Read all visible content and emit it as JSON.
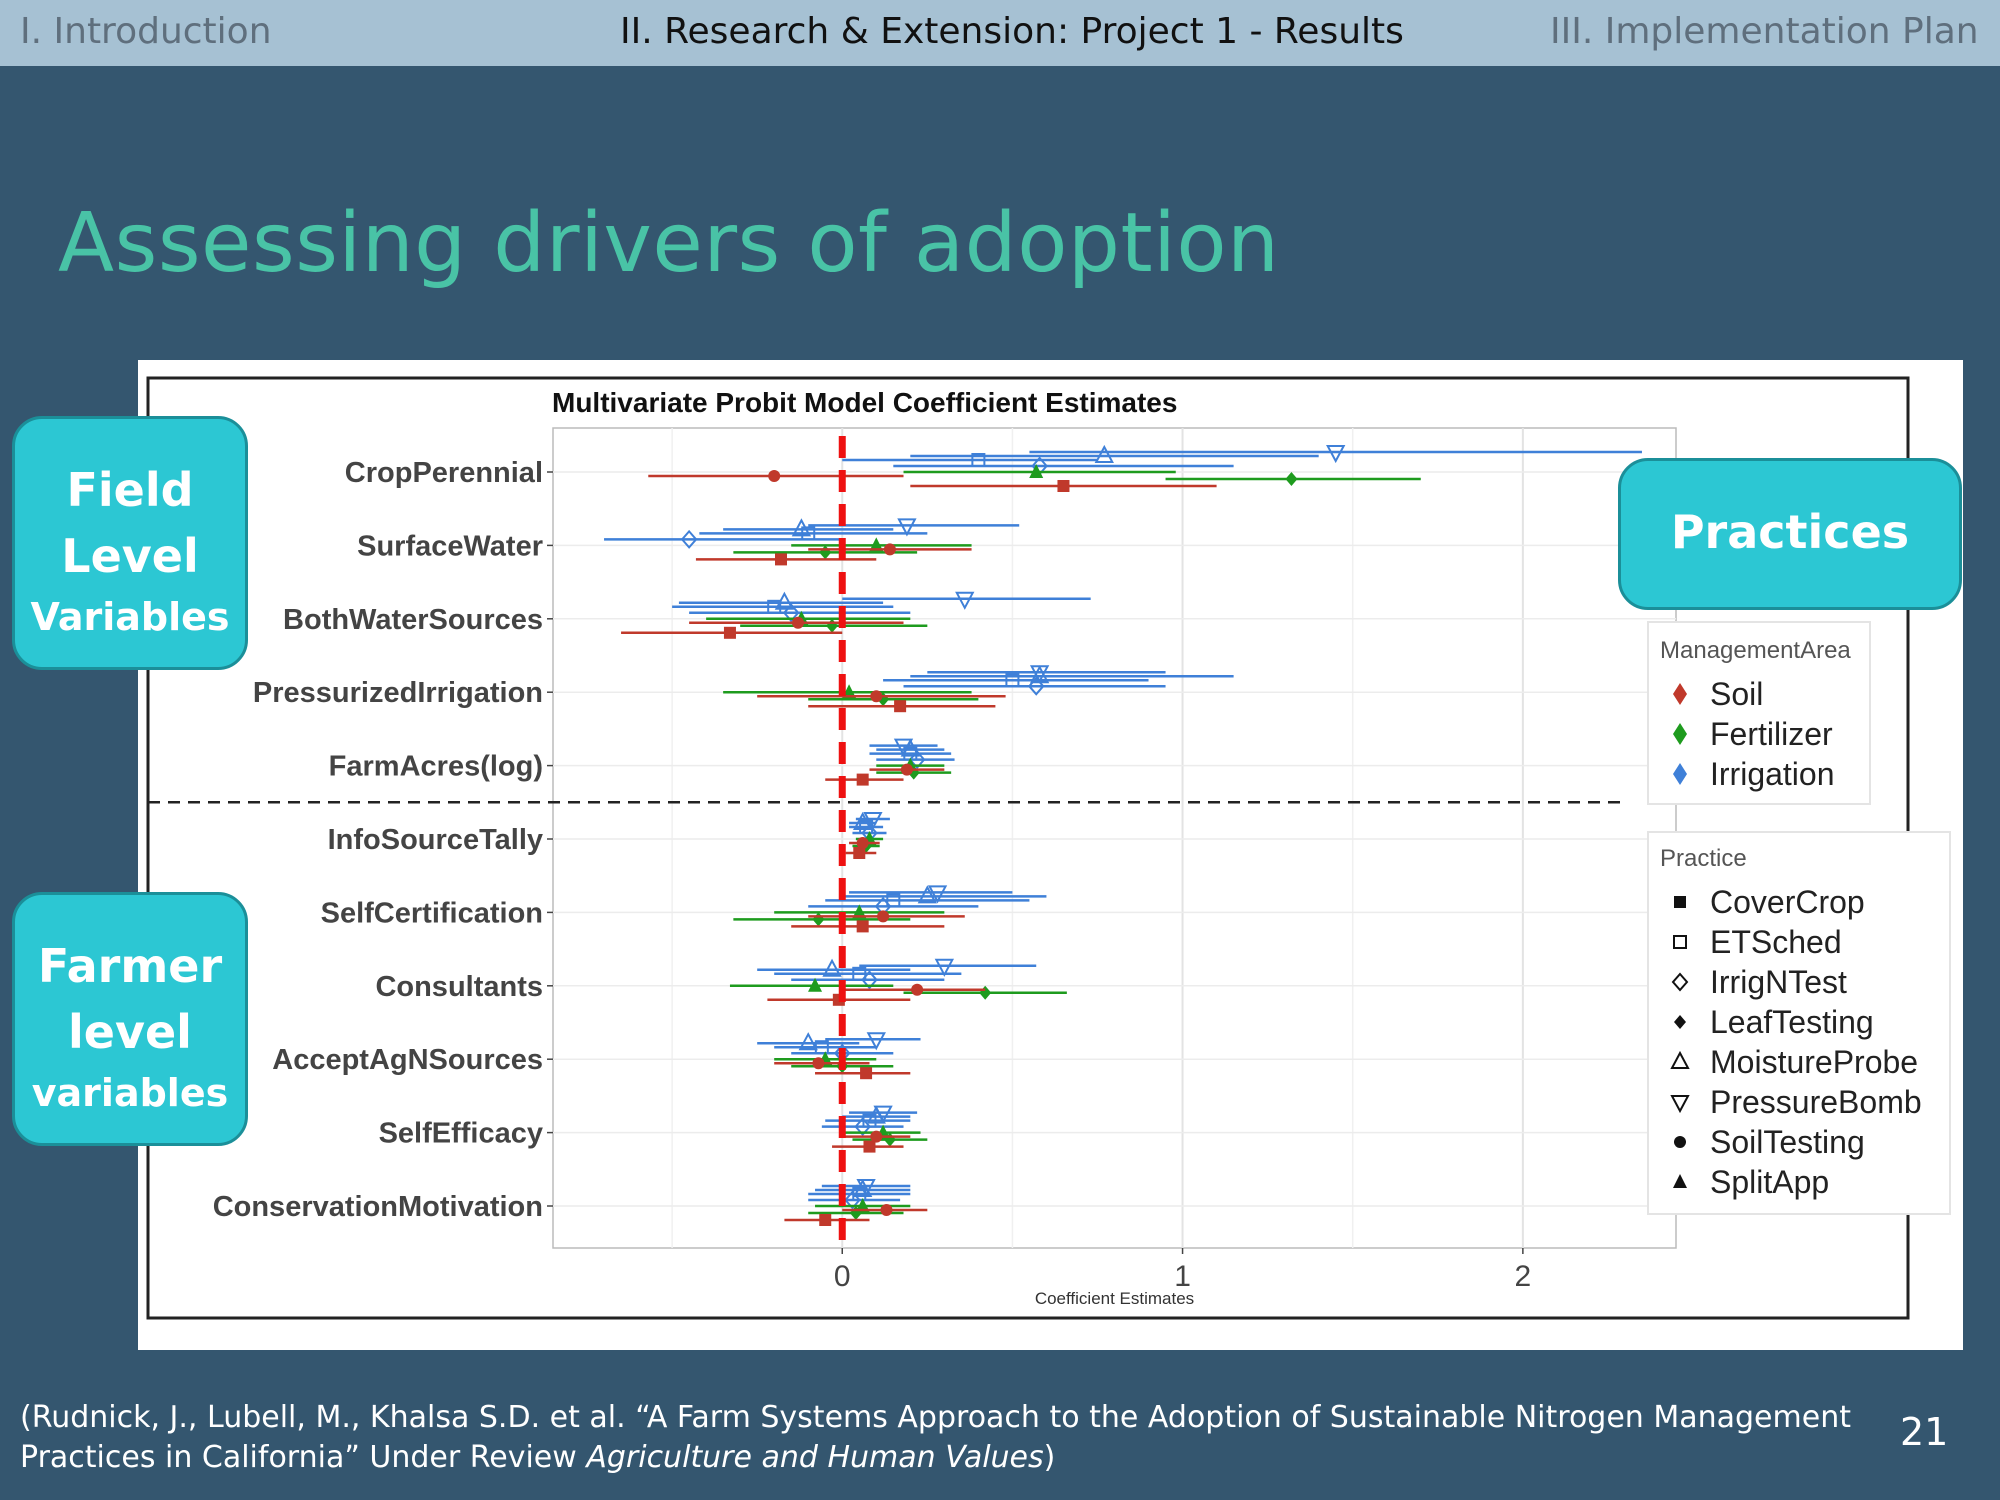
{
  "nav": {
    "intro": "I. Introduction",
    "current": "II. Research & Extension: Project 1 - Results",
    "plan": "III. Implementation Plan"
  },
  "slide_title": "Assessing drivers of adoption",
  "callouts": {
    "field_line1": "Field",
    "field_line2": "Level",
    "field_line3": "Variables",
    "farmer_line1": "Farmer",
    "farmer_line2": "level",
    "farmer_line3": "variables",
    "practices": "Practices"
  },
  "citation": {
    "text_before": "(Rudnick, J., Lubell, M., Khalsa S.D. et al. “A Farm Systems Approach to the Adoption of Sustainable Nitrogen Management Practices in California” Under Review ",
    "journal": "Agriculture and Human Values",
    "text_after": ")"
  },
  "page_number": "21",
  "colors": {
    "Soil": "#c0392b",
    "Fertilizer": "#1e9b1e",
    "Irrigation": "#3f80d8",
    "zero_line": "#ee1111"
  },
  "chart_data": {
    "type": "scatter",
    "title": "Multivariate Probit Model Coefficient Estimates",
    "xlabel": "Coefficient Estimates",
    "xlim": [
      -0.85,
      2.45
    ],
    "xticks": [
      0,
      1,
      2
    ],
    "grid": true,
    "reference_line_x": 0,
    "divider_between": [
      "FarmAcres(log)",
      "InfoSourceTally"
    ],
    "categories": [
      "CropPerennial",
      "SurfaceWater",
      "BothWaterSources",
      "PressurizedIrrigation",
      "FarmAcres(log)",
      "InfoSourceTally",
      "SelfCertification",
      "Consultants",
      "AcceptAgNSources",
      "SelfEfficacy",
      "ConservationMotivation"
    ],
    "legend_management": {
      "title": "ManagementArea",
      "items": [
        "Soil",
        "Fertilizer",
        "Irrigation"
      ],
      "position": "right"
    },
    "legend_practice": {
      "title": "Practice",
      "items": [
        "CoverCrop",
        "ETSched",
        "IrrigNTest",
        "LeafTesting",
        "MoistureProbe",
        "PressureBomb",
        "SoilTesting",
        "SplitApp"
      ],
      "position": "right"
    },
    "series": [
      {
        "name": "Irrigation",
        "estimates": [
          [
            {
              "practice": "ETSched",
              "est": 0.4,
              "lo": 0.0,
              "hi": 0.75
            },
            {
              "practice": "IrrigNTest",
              "est": 0.58,
              "lo": 0.15,
              "hi": 1.15
            },
            {
              "practice": "MoistureProbe",
              "est": 0.77,
              "lo": 0.2,
              "hi": 1.4
            },
            {
              "practice": "PressureBomb",
              "est": 1.45,
              "lo": 0.55,
              "hi": 2.35
            }
          ],
          [
            {
              "practice": "ETSched",
              "est": -0.1,
              "lo": -0.42,
              "hi": 0.25
            },
            {
              "practice": "IrrigNTest",
              "est": -0.45,
              "lo": -0.7,
              "hi": 0.0
            },
            {
              "practice": "MoistureProbe",
              "est": -0.12,
              "lo": -0.35,
              "hi": 0.15
            },
            {
              "practice": "PressureBomb",
              "est": 0.19,
              "lo": -0.1,
              "hi": 0.52
            }
          ],
          [
            {
              "practice": "ETSched",
              "est": -0.2,
              "lo": -0.5,
              "hi": 0.15
            },
            {
              "practice": "IrrigNTest",
              "est": -0.15,
              "lo": -0.45,
              "hi": 0.2
            },
            {
              "practice": "MoistureProbe",
              "est": -0.17,
              "lo": -0.48,
              "hi": 0.12
            },
            {
              "practice": "PressureBomb",
              "est": 0.36,
              "lo": 0.0,
              "hi": 0.73
            }
          ],
          [
            {
              "practice": "ETSched",
              "est": 0.5,
              "lo": 0.12,
              "hi": 0.9
            },
            {
              "practice": "IrrigNTest",
              "est": 0.57,
              "lo": 0.18,
              "hi": 0.95
            },
            {
              "practice": "MoistureProbe",
              "est": 0.58,
              "lo": 0.2,
              "hi": 1.15
            },
            {
              "practice": "PressureBomb",
              "est": 0.58,
              "lo": 0.25,
              "hi": 0.95
            }
          ],
          [
            {
              "practice": "ETSched",
              "est": 0.2,
              "lo": 0.08,
              "hi": 0.32
            },
            {
              "practice": "IrrigNTest",
              "est": 0.22,
              "lo": 0.1,
              "hi": 0.33
            },
            {
              "practice": "MoistureProbe",
              "est": 0.2,
              "lo": 0.1,
              "hi": 0.3
            },
            {
              "practice": "PressureBomb",
              "est": 0.18,
              "lo": 0.08,
              "hi": 0.28
            }
          ],
          [
            {
              "practice": "ETSched",
              "est": 0.07,
              "lo": 0.02,
              "hi": 0.12
            },
            {
              "practice": "IrrigNTest",
              "est": 0.08,
              "lo": 0.03,
              "hi": 0.13
            },
            {
              "practice": "MoistureProbe",
              "est": 0.06,
              "lo": 0.02,
              "hi": 0.1
            },
            {
              "practice": "PressureBomb",
              "est": 0.09,
              "lo": 0.04,
              "hi": 0.14
            }
          ],
          [
            {
              "practice": "ETSched",
              "est": 0.15,
              "lo": -0.05,
              "hi": 0.55
            },
            {
              "practice": "IrrigNTest",
              "est": 0.12,
              "lo": -0.1,
              "hi": 0.4
            },
            {
              "practice": "MoistureProbe",
              "est": 0.25,
              "lo": 0.0,
              "hi": 0.6
            },
            {
              "practice": "PressureBomb",
              "est": 0.28,
              "lo": 0.02,
              "hi": 0.5
            }
          ],
          [
            {
              "practice": "ETSched",
              "est": 0.05,
              "lo": -0.2,
              "hi": 0.35
            },
            {
              "practice": "IrrigNTest",
              "est": 0.08,
              "lo": -0.15,
              "hi": 0.3
            },
            {
              "practice": "MoistureProbe",
              "est": -0.03,
              "lo": -0.25,
              "hi": 0.2
            },
            {
              "practice": "PressureBomb",
              "est": 0.3,
              "lo": 0.05,
              "hi": 0.57
            }
          ],
          [
            {
              "practice": "ETSched",
              "est": -0.06,
              "lo": -0.2,
              "hi": 0.1
            },
            {
              "practice": "IrrigNTest",
              "est": 0.0,
              "lo": -0.15,
              "hi": 0.15
            },
            {
              "practice": "MoistureProbe",
              "est": -0.1,
              "lo": -0.25,
              "hi": 0.05
            },
            {
              "practice": "PressureBomb",
              "est": 0.1,
              "lo": -0.05,
              "hi": 0.23
            }
          ],
          [
            {
              "practice": "ETSched",
              "est": 0.08,
              "lo": -0.05,
              "hi": 0.2
            },
            {
              "practice": "IrrigNTest",
              "est": 0.06,
              "lo": -0.06,
              "hi": 0.18
            },
            {
              "practice": "MoistureProbe",
              "est": 0.1,
              "lo": 0.0,
              "hi": 0.2
            },
            {
              "practice": "PressureBomb",
              "est": 0.12,
              "lo": 0.02,
              "hi": 0.22
            }
          ],
          [
            {
              "practice": "ETSched",
              "est": 0.05,
              "lo": -0.1,
              "hi": 0.2
            },
            {
              "practice": "IrrigNTest",
              "est": 0.03,
              "lo": -0.1,
              "hi": 0.17
            },
            {
              "practice": "MoistureProbe",
              "est": 0.06,
              "lo": -0.08,
              "hi": 0.2
            },
            {
              "practice": "PressureBomb",
              "est": 0.07,
              "lo": -0.06,
              "hi": 0.2
            }
          ]
        ]
      },
      {
        "name": "Fertilizer",
        "estimates": [
          [
            {
              "practice": "LeafTesting",
              "est": 1.32,
              "lo": 0.95,
              "hi": 1.7
            },
            {
              "practice": "SplitApp",
              "est": 0.57,
              "lo": 0.18,
              "hi": 0.98
            }
          ],
          [
            {
              "practice": "LeafTesting",
              "est": -0.05,
              "lo": -0.32,
              "hi": 0.22
            },
            {
              "practice": "SplitApp",
              "est": 0.1,
              "lo": -0.15,
              "hi": 0.38
            }
          ],
          [
            {
              "practice": "LeafTesting",
              "est": -0.03,
              "lo": -0.3,
              "hi": 0.25
            },
            {
              "practice": "SplitApp",
              "est": -0.12,
              "lo": -0.4,
              "hi": 0.2
            }
          ],
          [
            {
              "practice": "LeafTesting",
              "est": 0.12,
              "lo": -0.1,
              "hi": 0.4
            },
            {
              "practice": "SplitApp",
              "est": 0.02,
              "lo": -0.35,
              "hi": 0.38
            }
          ],
          [
            {
              "practice": "LeafTesting",
              "est": 0.21,
              "lo": 0.1,
              "hi": 0.32
            },
            {
              "practice": "SplitApp",
              "est": 0.2,
              "lo": 0.1,
              "hi": 0.3
            }
          ],
          [
            {
              "practice": "LeafTesting",
              "est": 0.07,
              "lo": 0.03,
              "hi": 0.11
            },
            {
              "practice": "SplitApp",
              "est": 0.08,
              "lo": 0.04,
              "hi": 0.12
            }
          ],
          [
            {
              "practice": "LeafTesting",
              "est": -0.07,
              "lo": -0.32,
              "hi": 0.2
            },
            {
              "practice": "SplitApp",
              "est": 0.05,
              "lo": -0.2,
              "hi": 0.3
            }
          ],
          [
            {
              "practice": "LeafTesting",
              "est": 0.42,
              "lo": 0.18,
              "hi": 0.66
            },
            {
              "practice": "SplitApp",
              "est": -0.08,
              "lo": -0.33,
              "hi": 0.15
            }
          ],
          [
            {
              "practice": "LeafTesting",
              "est": 0.0,
              "lo": -0.15,
              "hi": 0.15
            },
            {
              "practice": "SplitApp",
              "est": -0.05,
              "lo": -0.2,
              "hi": 0.1
            }
          ],
          [
            {
              "practice": "LeafTesting",
              "est": 0.14,
              "lo": 0.03,
              "hi": 0.25
            },
            {
              "practice": "SplitApp",
              "est": 0.12,
              "lo": 0.0,
              "hi": 0.23
            }
          ],
          [
            {
              "practice": "LeafTesting",
              "est": 0.04,
              "lo": -0.1,
              "hi": 0.18
            },
            {
              "practice": "SplitApp",
              "est": 0.06,
              "lo": -0.08,
              "hi": 0.2
            }
          ]
        ]
      },
      {
        "name": "Soil",
        "estimates": [
          [
            {
              "practice": "CoverCrop",
              "est": 0.65,
              "lo": 0.2,
              "hi": 1.1
            },
            {
              "practice": "SoilTesting",
              "est": -0.2,
              "lo": -0.57,
              "hi": 0.18
            }
          ],
          [
            {
              "practice": "CoverCrop",
              "est": -0.18,
              "lo": -0.43,
              "hi": 0.1
            },
            {
              "practice": "SoilTesting",
              "est": 0.14,
              "lo": -0.1,
              "hi": 0.38
            }
          ],
          [
            {
              "practice": "CoverCrop",
              "est": -0.33,
              "lo": -0.65,
              "hi": 0.0
            },
            {
              "practice": "SoilTesting",
              "est": -0.13,
              "lo": -0.45,
              "hi": 0.18
            }
          ],
          [
            {
              "practice": "CoverCrop",
              "est": 0.17,
              "lo": -0.1,
              "hi": 0.45
            },
            {
              "practice": "SoilTesting",
              "est": 0.1,
              "lo": -0.25,
              "hi": 0.48
            }
          ],
          [
            {
              "practice": "CoverCrop",
              "est": 0.06,
              "lo": -0.05,
              "hi": 0.18
            },
            {
              "practice": "SoilTesting",
              "est": 0.19,
              "lo": 0.08,
              "hi": 0.3
            }
          ],
          [
            {
              "practice": "CoverCrop",
              "est": 0.05,
              "lo": 0.01,
              "hi": 0.1
            },
            {
              "practice": "SoilTesting",
              "est": 0.06,
              "lo": 0.02,
              "hi": 0.11
            }
          ],
          [
            {
              "practice": "CoverCrop",
              "est": 0.06,
              "lo": -0.15,
              "hi": 0.3
            },
            {
              "practice": "SoilTesting",
              "est": 0.12,
              "lo": -0.1,
              "hi": 0.36
            }
          ],
          [
            {
              "practice": "CoverCrop",
              "est": -0.01,
              "lo": -0.22,
              "hi": 0.2
            },
            {
              "practice": "SoilTesting",
              "est": 0.22,
              "lo": 0.0,
              "hi": 0.42
            }
          ],
          [
            {
              "practice": "CoverCrop",
              "est": 0.07,
              "lo": -0.08,
              "hi": 0.2
            },
            {
              "practice": "SoilTesting",
              "est": -0.07,
              "lo": -0.2,
              "hi": 0.08
            }
          ],
          [
            {
              "practice": "CoverCrop",
              "est": 0.08,
              "lo": -0.03,
              "hi": 0.18
            },
            {
              "practice": "SoilTesting",
              "est": 0.1,
              "lo": 0.0,
              "hi": 0.2
            }
          ],
          [
            {
              "practice": "CoverCrop",
              "est": -0.05,
              "lo": -0.17,
              "hi": 0.08
            },
            {
              "practice": "SoilTesting",
              "est": 0.13,
              "lo": 0.0,
              "hi": 0.25
            }
          ]
        ]
      }
    ]
  }
}
